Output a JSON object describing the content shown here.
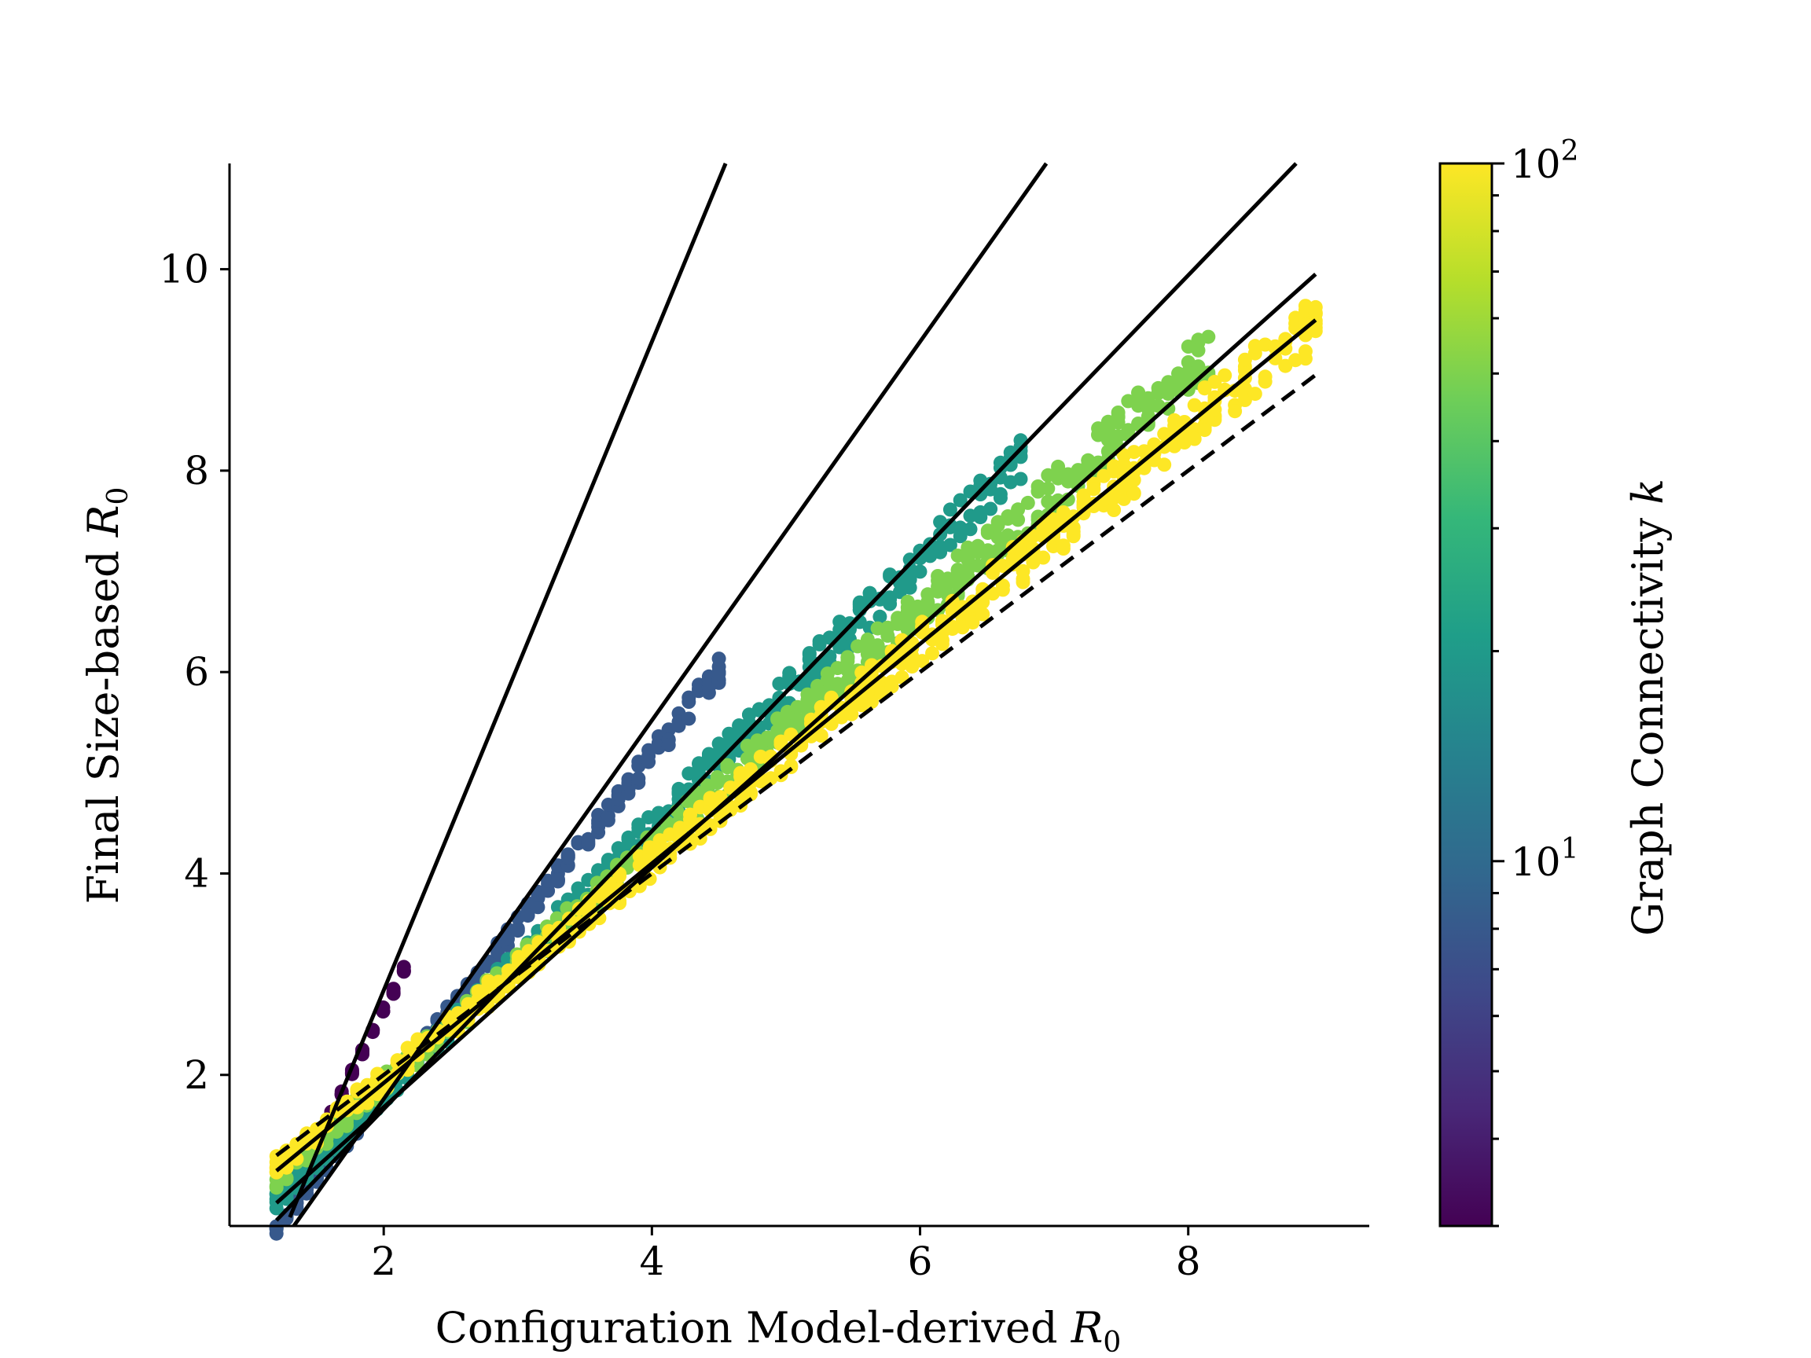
{
  "chart_data": {
    "type": "scatter",
    "xlabel": "Configuration Model-derived ",
    "xlabel_symbol": "R",
    "xlabel_sub": "0",
    "ylabel": "Final Size-based ",
    "ylabel_symbol": "R",
    "ylabel_sub": "0",
    "xlim": [
      0.85,
      9.35
    ],
    "ylim": [
      0.5,
      11.05
    ],
    "x_ticks": [
      2,
      4,
      6,
      8
    ],
    "y_ticks": [
      2,
      4,
      6,
      8,
      10
    ],
    "x_tick_labels": [
      "2",
      "4",
      "6",
      "8"
    ],
    "y_tick_labels": [
      "2",
      "4",
      "6",
      "8",
      "10"
    ],
    "grid": false,
    "colorbar": {
      "label": "Graph Connectivity ",
      "label_var": "k",
      "scale": "log",
      "range": [
        3,
        100
      ],
      "colormap": "viridis",
      "tick_labels": [
        {
          "value": 100,
          "base": "10",
          "exp": "2"
        },
        {
          "value": 10,
          "base": "10",
          "exp": "1"
        }
      ],
      "colors": [
        "#440154",
        "#482878",
        "#3e4989",
        "#31688e",
        "#26828e",
        "#1f9e89",
        "#35b779",
        "#6ece58",
        "#b5de2b",
        "#fde725"
      ]
    },
    "series": [
      {
        "k": 3,
        "x_range": [
          1.3,
          2.15
        ],
        "slope": 2.65,
        "intercept": -2.65,
        "spread": 0.08
      },
      {
        "k": 8,
        "x_range": [
          1.2,
          4.5
        ],
        "slope": 1.68,
        "intercept": -1.55,
        "spread": 0.25
      },
      {
        "k": 20,
        "x_range": [
          1.2,
          6.75
        ],
        "slope": 1.33,
        "intercept": -0.85,
        "spread": 0.45
      },
      {
        "k": 50,
        "x_range": [
          1.2,
          8.15
        ],
        "slope": 1.18,
        "intercept": -0.45,
        "spread": 0.5
      },
      {
        "k": 100,
        "x_range": [
          1.2,
          8.95
        ],
        "slope": 1.08,
        "intercept": -0.2,
        "spread": 0.55
      }
    ],
    "fit_lines": [
      {
        "slope": 3.22,
        "intercept": -3.6,
        "x_range": [
          1.3,
          4.98
        ]
      },
      {
        "slope": 1.88,
        "intercept": -2.0,
        "x_range": [
          1.3,
          7.0
        ]
      },
      {
        "slope": 1.38,
        "intercept": -1.1,
        "x_range": [
          1.2,
          8.95
        ]
      },
      {
        "slope": 1.19,
        "intercept": -0.7,
        "x_range": [
          1.2,
          8.95
        ]
      },
      {
        "slope": 1.09,
        "intercept": -0.26,
        "x_range": [
          1.2,
          8.95
        ]
      }
    ],
    "reference_line": {
      "slope": 1.0,
      "intercept": 0.0,
      "x_range": [
        1.2,
        8.95
      ],
      "style": "dashed"
    }
  }
}
